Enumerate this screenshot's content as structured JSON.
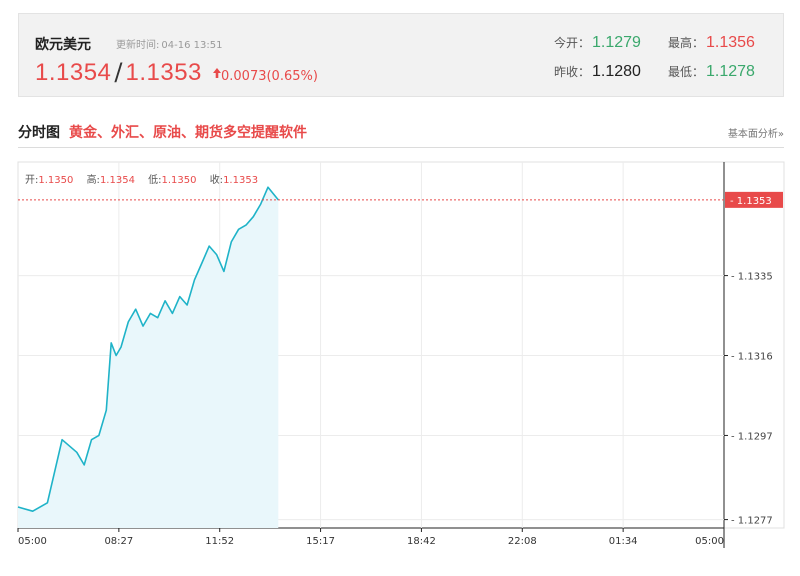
{
  "quote": {
    "name": "欧元美元",
    "update_label": "更新时间:",
    "update_time": "04-16 13:51",
    "bid": "1.1354",
    "separator": "/",
    "ask": "1.1353",
    "change": "0.0073(0.65%)",
    "open_label": "今开：",
    "open_value": "1.1279",
    "high_label": "最高：",
    "high_value": "1.1356",
    "prev_close_label": "昨收：",
    "prev_close_value": "1.1280",
    "low_label": "最低：",
    "low_value": "1.1278"
  },
  "section": {
    "title": "分时图",
    "promo": "黄金、外汇、原油、期货多空提醒软件",
    "analysis_link": "基本面分析»"
  },
  "ohlc": {
    "open_label": "开:",
    "open": "1.1350",
    "high_label": "高:",
    "high": "1.1354",
    "low_label": "低:",
    "low": "1.1350",
    "close_label": "收:",
    "close": "1.1353"
  },
  "colors": {
    "up": "#e84a4a",
    "down": "#3aa86c",
    "line": "#1fb3c8",
    "fill": "#e9f7fb"
  },
  "chart_data": {
    "type": "area",
    "x_ticks": [
      "05:00",
      "08:27",
      "11:52",
      "15:17",
      "18:42",
      "22:08",
      "01:34",
      "05:00"
    ],
    "y_ticks": [
      1.1277,
      1.1297,
      1.1316,
      1.1335
    ],
    "ylim": [
      1.1275,
      1.1362
    ],
    "current_price_label": "1.1353",
    "current_price": 1.1353,
    "grid": true,
    "x": [
      "05:00",
      "05:30",
      "06:00",
      "06:30",
      "07:00",
      "07:15",
      "07:30",
      "07:45",
      "08:00",
      "08:10",
      "08:20",
      "08:30",
      "08:45",
      "09:00",
      "09:15",
      "09:30",
      "09:45",
      "10:00",
      "10:15",
      "10:30",
      "10:45",
      "11:00",
      "11:15",
      "11:30",
      "11:45",
      "12:00",
      "12:15",
      "12:30",
      "12:45",
      "13:00",
      "13:15",
      "13:30",
      "13:51"
    ],
    "y": [
      1.128,
      1.1279,
      1.1281,
      1.1296,
      1.1293,
      1.129,
      1.1296,
      1.1297,
      1.1303,
      1.1319,
      1.1316,
      1.1318,
      1.1324,
      1.1327,
      1.1323,
      1.1326,
      1.1325,
      1.1329,
      1.1326,
      1.133,
      1.1328,
      1.1334,
      1.1338,
      1.1342,
      1.134,
      1.1336,
      1.1343,
      1.1346,
      1.1347,
      1.1349,
      1.1352,
      1.1356,
      1.1353
    ]
  }
}
